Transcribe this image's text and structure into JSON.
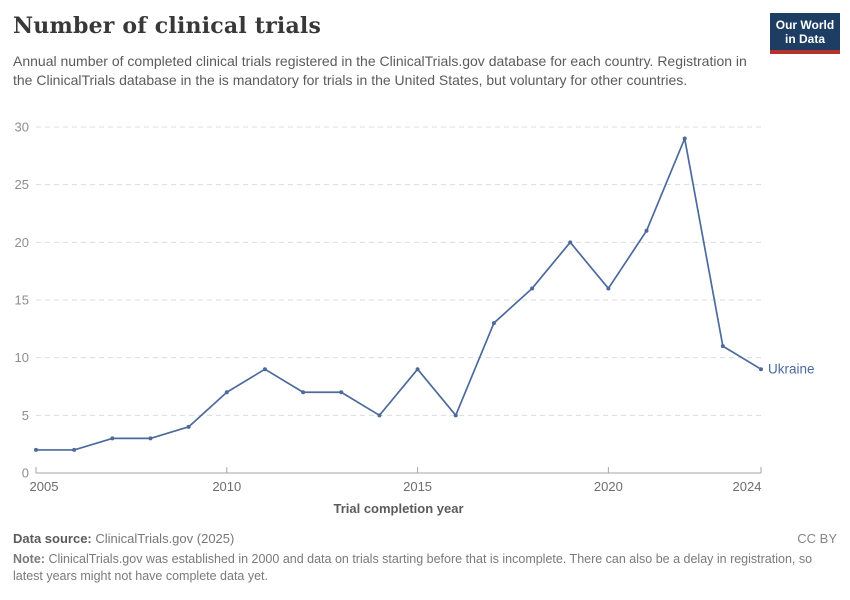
{
  "header": {
    "title": "Number of clinical trials",
    "subtitle": "Annual number of completed clinical trials registered in the ClinicalTrials.gov database for each country. Registration in the ClinicalTrials database in the is mandatory for trials in the United States, but voluntary for other countries.",
    "logo": {
      "line1": "Our World",
      "line2": "in Data"
    }
  },
  "chart_data": {
    "type": "line",
    "title": "Number of clinical trials",
    "xlabel": "Trial completion year",
    "ylabel": "",
    "x": [
      2005,
      2006,
      2007,
      2008,
      2009,
      2010,
      2011,
      2012,
      2013,
      2014,
      2015,
      2016,
      2017,
      2018,
      2019,
      2020,
      2021,
      2022,
      2023,
      2024
    ],
    "series": [
      {
        "name": "Ukraine",
        "color": "#4C6A9C",
        "values": [
          2,
          2,
          3,
          3,
          4,
          7,
          9,
          7,
          7,
          5,
          9,
          5,
          13,
          16,
          20,
          16,
          21,
          29,
          11,
          9
        ]
      }
    ],
    "ylim": [
      0,
      30
    ],
    "yticks": [
      0,
      5,
      10,
      15,
      20,
      25,
      30
    ],
    "xticks": [
      2005,
      2010,
      2015,
      2020,
      2024
    ],
    "grid": "horizontal-dashed",
    "legend_position": "end-of-line-label"
  },
  "footer": {
    "datasource_label": "Data source:",
    "datasource_value": "ClinicalTrials.gov (2025)",
    "license": "CC BY",
    "note_label": "Note:",
    "note_text": "ClinicalTrials.gov was established in 2000 and data on trials starting before that is incomplete. There can also be a delay in registration, so latest years might not have complete data yet."
  },
  "colors": {
    "accent_line": "#4C6A9C",
    "grid": "#dcdcdc",
    "axis": "#a6a6a6",
    "ytick_text": "#8e8e8e",
    "xtick_text": "#6e6e6e",
    "axis_title_text": "#5b5b5b",
    "logo_navy": "#1d3d63",
    "logo_red": "#b5332e"
  }
}
